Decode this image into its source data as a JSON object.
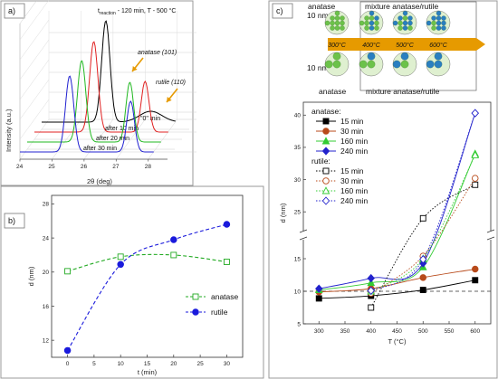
{
  "panels": {
    "a": "a)",
    "b": "b)",
    "c": "c)"
  },
  "panel_a": {
    "conditions": "t",
    "conditions_sub": "reaction",
    "conditions_rest": " - 120 min, T - 500 °C",
    "ylabel": "Intensity (a.u.)",
    "xlabel": "2θ (deg)",
    "xticks": [
      24,
      25,
      26,
      27,
      28
    ],
    "anatase_label": "anatase (101)",
    "rutile_label": "rutile (110)",
    "curves": [
      {
        "name": "\"0\" min",
        "color": "#000000"
      },
      {
        "name": "after 10 min",
        "color": "#e02020"
      },
      {
        "name": "after 20 min",
        "color": "#20b820"
      },
      {
        "name": "after 30 min",
        "color": "#2020d0"
      }
    ]
  },
  "chart_data": [
    {
      "type": "scatter",
      "title": "",
      "xlabel": "t (min)",
      "ylabel": "d (nm)",
      "xlim": [
        -3,
        33
      ],
      "ylim": [
        10,
        29
      ],
      "xticks": [
        0,
        5,
        10,
        15,
        20,
        25,
        30
      ],
      "yticks": [
        12,
        16,
        20,
        24,
        28
      ],
      "legend": "right",
      "series": [
        {
          "name": "anatase",
          "color": "#22aa22",
          "marker": "square-open",
          "x": [
            0,
            10,
            20,
            30
          ],
          "y": [
            20.1,
            21.8,
            22.0,
            21.2
          ]
        },
        {
          "name": "rutile",
          "color": "#1a1adc",
          "marker": "circle-filled",
          "x": [
            0,
            10,
            20,
            30
          ],
          "y": [
            10.8,
            20.9,
            23.8,
            25.6
          ]
        }
      ]
    },
    {
      "type": "line",
      "title": "",
      "xlabel": "T (°C)",
      "ylabel": "d (nm)",
      "xlim": [
        270,
        630
      ],
      "xticks": [
        300,
        350,
        400,
        450,
        500,
        550,
        600
      ],
      "yticks": [
        5,
        10,
        15,
        25,
        30,
        35,
        40
      ],
      "y_axis_break": [
        17.5,
        22.5
      ],
      "legend": "top-left",
      "legend_group_anatase": "anatase:",
      "legend_group_rutile": "rutile:",
      "reference_line_y": 10,
      "series": [
        {
          "name": "15 min",
          "group": "anatase",
          "color": "#000000",
          "marker": "square-filled",
          "x": [
            300,
            400,
            500,
            600
          ],
          "y": [
            8.9,
            9.3,
            10.2,
            11.7
          ]
        },
        {
          "name": "30 min",
          "group": "anatase",
          "color": "#b84a1a",
          "marker": "circle-filled",
          "x": [
            300,
            400,
            500,
            600
          ],
          "y": [
            9.9,
            10.4,
            12.1,
            13.4
          ]
        },
        {
          "name": "160 min",
          "group": "anatase",
          "color": "#33cc33",
          "marker": "triangle-filled",
          "x": [
            300,
            400,
            500,
            600
          ],
          "y": [
            10.2,
            11.3,
            13.7,
            34.0
          ]
        },
        {
          "name": "240 min",
          "group": "anatase",
          "color": "#2222cc",
          "marker": "diamond-filled",
          "x": [
            300,
            400,
            500,
            600
          ],
          "y": [
            10.4,
            12.0,
            14.3,
            40.3
          ]
        },
        {
          "name": "15 min",
          "group": "rutile",
          "color": "#000000",
          "marker": "square-open",
          "x": [
            400,
            500,
            600
          ],
          "y": [
            7.5,
            24.0,
            29.2
          ]
        },
        {
          "name": "30 min",
          "group": "rutile",
          "color": "#b84a1a",
          "marker": "circle-open",
          "x": [
            400,
            500,
            600
          ],
          "y": [
            9.7,
            15.4,
            30.2
          ]
        },
        {
          "name": "160 min",
          "group": "rutile",
          "color": "#33cc33",
          "marker": "triangle-open",
          "x": [
            400,
            500,
            600
          ],
          "y": [
            10.0,
            15.0,
            33.8
          ]
        },
        {
          "name": "240 min",
          "group": "rutile",
          "color": "#2222cc",
          "marker": "diamond-open",
          "x": [
            400,
            500,
            600
          ],
          "y": [
            10.1,
            14.9,
            40.3
          ]
        }
      ]
    }
  ],
  "panel_c_top": {
    "row_labels": [
      "10 nm >",
      "10 nm <"
    ],
    "phases_top": [
      "anatase",
      "mixture anatase/rutile"
    ],
    "phases_bottom": [
      "anatase",
      "mixture anatase/rutile"
    ],
    "temps": [
      "300°C",
      "400°C",
      "500°C",
      "600°C"
    ],
    "colors": {
      "anatase": "#6cc24a",
      "rutile": "#2a7fc0",
      "arrow": "#e69a00"
    }
  }
}
